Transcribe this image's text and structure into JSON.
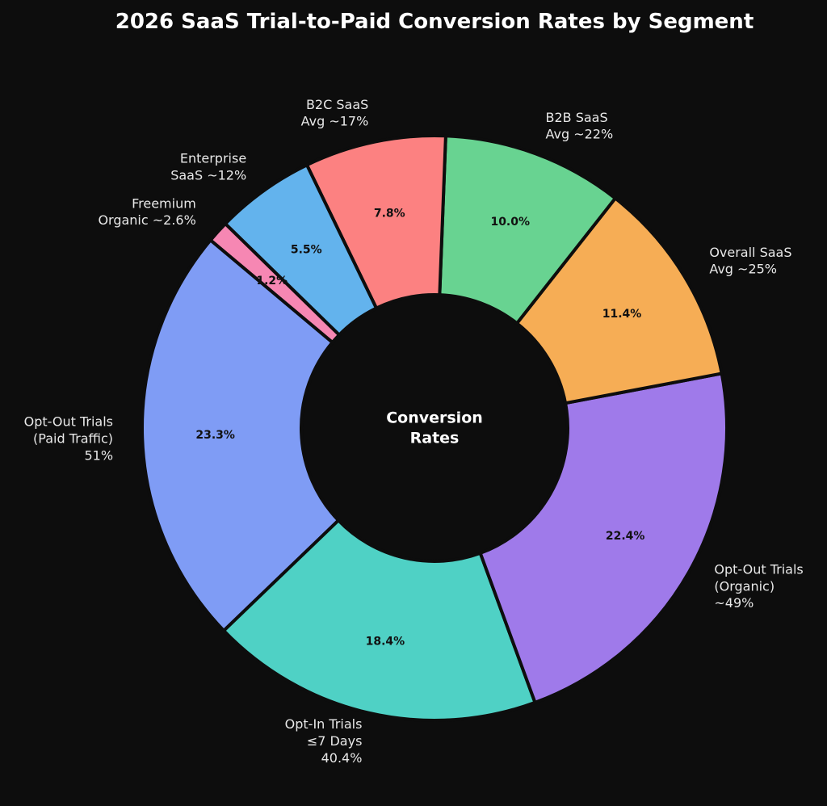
{
  "chart_data": {
    "type": "donut",
    "title": "2026 SaaS Trial-to-Paid Conversion Rates by Segment",
    "center_text": "Conversion\nRates",
    "categories": [
      "Opt-Out Trials\n(Paid Traffic)\n51%",
      "Opt-In Trials\n≤7 Days\n40.4%",
      "Opt-Out Trials\n(Organic)\n~49%",
      "Overall SaaS\nAvg ~25%",
      "B2B SaaS\nAvg ~22%",
      "B2C SaaS\nAvg ~17%",
      "Enterprise\nSaaS ~12%",
      "Freemium\nOrganic ~2.6%"
    ],
    "values": [
      23.3,
      18.4,
      22.4,
      11.4,
      10.0,
      7.8,
      5.5,
      1.2
    ],
    "value_labels": [
      "23.3%",
      "18.4%",
      "22.4%",
      "11.4%",
      "10.0%",
      "7.8%",
      "5.5%",
      "1.2%"
    ],
    "colors": [
      "#7f9cf5",
      "#4fd1c5",
      "#9f7aea",
      "#f6ad55",
      "#68d391",
      "#fc8181",
      "#63b3ed",
      "#f687b3"
    ]
  }
}
